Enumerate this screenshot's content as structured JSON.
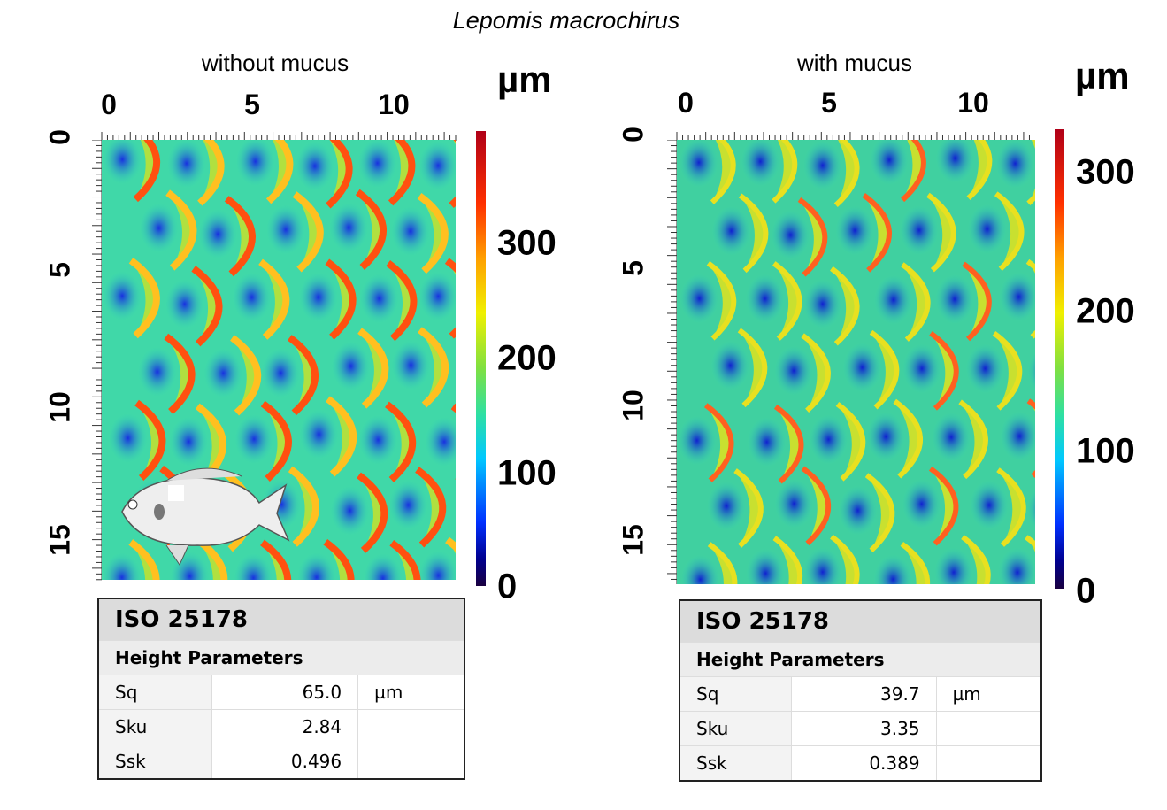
{
  "title": "Lepomis macrochirus",
  "panels": [
    {
      "label": "without mucus",
      "x_ticks": [
        "0",
        "5",
        "10"
      ],
      "y_ticks": [
        "0",
        "5",
        "10",
        "15"
      ],
      "colorbar": {
        "unit": "µm",
        "ticks": [
          "300",
          "200",
          "100",
          "0"
        ],
        "range": [
          0,
          390
        ]
      },
      "table": {
        "title": "ISO 25178",
        "section": "Height Parameters",
        "rows": [
          {
            "param": "Sq",
            "value": "65.0",
            "unit": "µm"
          },
          {
            "param": "Sku",
            "value": "2.84",
            "unit": ""
          },
          {
            "param": "Ssk",
            "value": "0.496",
            "unit": ""
          }
        ]
      }
    },
    {
      "label": "with mucus",
      "x_ticks": [
        "0",
        "5",
        "10"
      ],
      "y_ticks": [
        "0",
        "5",
        "10",
        "15"
      ],
      "colorbar": {
        "unit": "µm",
        "ticks": [
          "300",
          "200",
          "100",
          "0"
        ],
        "range": [
          0,
          330
        ]
      },
      "table": {
        "title": "ISO 25178",
        "section": "Height Parameters",
        "rows": [
          {
            "param": "Sq",
            "value": "39.7",
            "unit": "µm"
          },
          {
            "param": "Sku",
            "value": "3.35",
            "unit": ""
          },
          {
            "param": "Ssk",
            "value": "0.389",
            "unit": ""
          }
        ]
      }
    }
  ]
}
